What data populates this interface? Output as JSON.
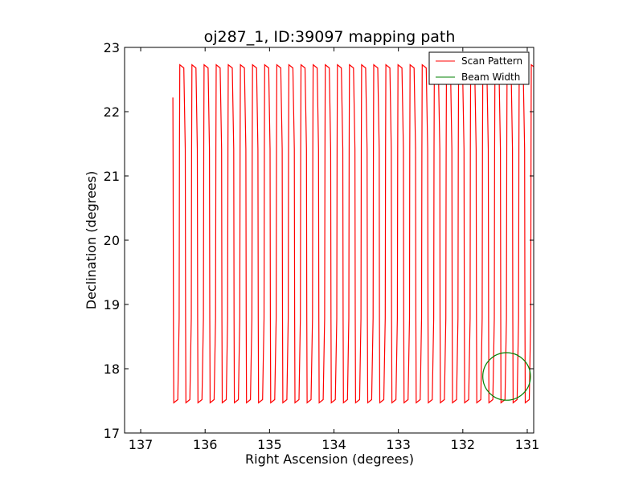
{
  "chart_data": {
    "type": "line",
    "title": "oj287_1, ID:39097 mapping path",
    "xlabel": "Right Ascension (degrees)",
    "ylabel": "Declination (degrees)",
    "xlim": [
      137.25,
      130.9
    ],
    "ylim": [
      17,
      23
    ],
    "x_inverted": true,
    "xticks": [
      137,
      136,
      135,
      134,
      133,
      132,
      131
    ],
    "yticks": [
      17,
      18,
      19,
      20,
      21,
      22,
      23
    ],
    "grid": false,
    "legend_position": "top-right",
    "series": [
      {
        "name": "Scan Pattern",
        "color": "#ff0000",
        "kind": "raster-scan",
        "ra_start": 136.5,
        "ra_end": 130.95,
        "dec_min": 17.47,
        "dec_max": 22.73,
        "dec_start": 22.22,
        "legs": 60
      },
      {
        "name": "Beam Width",
        "color": "#008000",
        "kind": "circle",
        "center_ra": 131.32,
        "center_dec": 17.88,
        "radius_deg": 0.37
      }
    ]
  }
}
